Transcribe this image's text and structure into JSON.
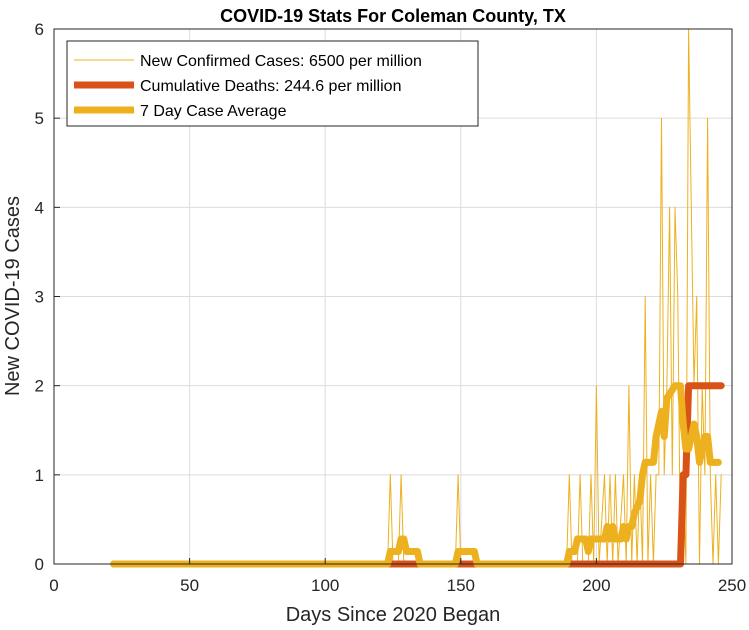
{
  "chart_data": {
    "type": "line",
    "title": "COVID-19 Stats For Coleman County, TX",
    "xlabel": "Days Since 2020 Began",
    "ylabel": "New COVID-19 Cases",
    "xlim": [
      0,
      250
    ],
    "ylim": [
      0,
      6
    ],
    "xticks": [
      0,
      50,
      100,
      150,
      200,
      250
    ],
    "yticks": [
      0,
      1,
      2,
      3,
      4,
      5,
      6
    ],
    "grid": true,
    "legend_position": "top-left",
    "series": [
      {
        "name": "New Confirmed Cases: 6500 per million",
        "color": "#EDB120",
        "style": "thin",
        "points": [
          [
            22,
            0
          ],
          [
            123,
            0
          ],
          [
            124,
            1
          ],
          [
            125,
            0
          ],
          [
            127,
            0
          ],
          [
            128,
            1
          ],
          [
            129,
            0
          ],
          [
            148,
            0
          ],
          [
            149,
            1
          ],
          [
            150,
            0
          ],
          [
            189,
            0
          ],
          [
            190,
            1
          ],
          [
            191,
            0
          ],
          [
            193,
            0
          ],
          [
            194,
            1
          ],
          [
            195,
            0
          ],
          [
            197,
            0
          ],
          [
            198,
            1
          ],
          [
            199,
            0
          ],
          [
            200,
            2
          ],
          [
            201,
            0
          ],
          [
            203,
            1
          ],
          [
            204,
            0
          ],
          [
            205,
            1
          ],
          [
            206,
            0
          ],
          [
            207,
            1
          ],
          [
            208,
            0
          ],
          [
            210,
            1
          ],
          [
            211,
            0
          ],
          [
            212,
            2
          ],
          [
            213,
            0
          ],
          [
            214,
            1
          ],
          [
            215,
            0
          ],
          [
            216,
            1
          ],
          [
            217,
            0
          ],
          [
            218,
            3
          ],
          [
            219,
            0
          ],
          [
            220,
            1
          ],
          [
            221,
            0
          ],
          [
            222,
            1
          ],
          [
            223,
            1
          ],
          [
            224,
            5
          ],
          [
            225,
            1
          ],
          [
            226,
            2
          ],
          [
            227,
            4
          ],
          [
            228,
            1
          ],
          [
            229,
            4
          ],
          [
            230,
            3
          ],
          [
            231,
            0
          ],
          [
            232,
            1
          ],
          [
            233,
            0
          ],
          [
            234,
            6
          ],
          [
            235,
            4
          ],
          [
            236,
            2
          ],
          [
            237,
            3
          ],
          [
            238,
            0
          ],
          [
            239,
            2
          ],
          [
            240,
            1
          ],
          [
            241,
            5
          ],
          [
            242,
            1
          ],
          [
            243,
            0
          ],
          [
            244,
            1
          ],
          [
            245,
            0
          ],
          [
            246,
            1
          ]
        ]
      },
      {
        "name": "Cumulative Deaths: 244.6 per million",
        "color": "#D95319",
        "style": "thick",
        "points": [
          [
            22,
            0
          ],
          [
            230,
            0
          ],
          [
            231,
            0
          ],
          [
            232,
            1
          ],
          [
            233,
            1
          ],
          [
            234,
            2
          ],
          [
            246,
            2
          ]
        ]
      },
      {
        "name": "7 Day Case Average",
        "color": "#EDB120",
        "style": "thick",
        "points": [
          [
            22,
            0
          ],
          [
            123,
            0
          ],
          [
            124,
            0.14
          ],
          [
            127,
            0.14
          ],
          [
            128,
            0.28
          ],
          [
            129,
            0.28
          ],
          [
            130,
            0.14
          ],
          [
            134,
            0.14
          ],
          [
            135,
            0
          ],
          [
            148,
            0
          ],
          [
            149,
            0.14
          ],
          [
            155,
            0.14
          ],
          [
            156,
            0
          ],
          [
            189,
            0
          ],
          [
            190,
            0.14
          ],
          [
            192,
            0.14
          ],
          [
            193,
            0.28
          ],
          [
            196,
            0.28
          ],
          [
            197,
            0.14
          ],
          [
            198,
            0.28
          ],
          [
            203,
            0.28
          ],
          [
            204,
            0.42
          ],
          [
            205,
            0.28
          ],
          [
            206,
            0.42
          ],
          [
            207,
            0.28
          ],
          [
            209,
            0.28
          ],
          [
            210,
            0.42
          ],
          [
            211,
            0.28
          ],
          [
            212,
            0.42
          ],
          [
            213,
            0.42
          ],
          [
            214,
            0.57
          ],
          [
            216,
            0.71
          ],
          [
            217,
            1.0
          ],
          [
            218,
            1.14
          ],
          [
            221,
            1.14
          ],
          [
            222,
            1.43
          ],
          [
            223,
            1.57
          ],
          [
            224,
            1.71
          ],
          [
            225,
            1.43
          ],
          [
            226,
            1.86
          ],
          [
            229,
            2.0
          ],
          [
            231,
            2.0
          ],
          [
            232,
            1.57
          ],
          [
            233,
            1.29
          ],
          [
            234,
            1.29
          ],
          [
            235,
            1.43
          ],
          [
            236,
            1.57
          ],
          [
            237,
            1.43
          ],
          [
            238,
            1.14
          ],
          [
            239,
            1.29
          ],
          [
            240,
            1.43
          ],
          [
            241,
            1.43
          ],
          [
            242,
            1.14
          ],
          [
            243,
            1.14
          ],
          [
            244,
            1.14
          ],
          [
            245,
            1.14
          ]
        ]
      }
    ]
  }
}
